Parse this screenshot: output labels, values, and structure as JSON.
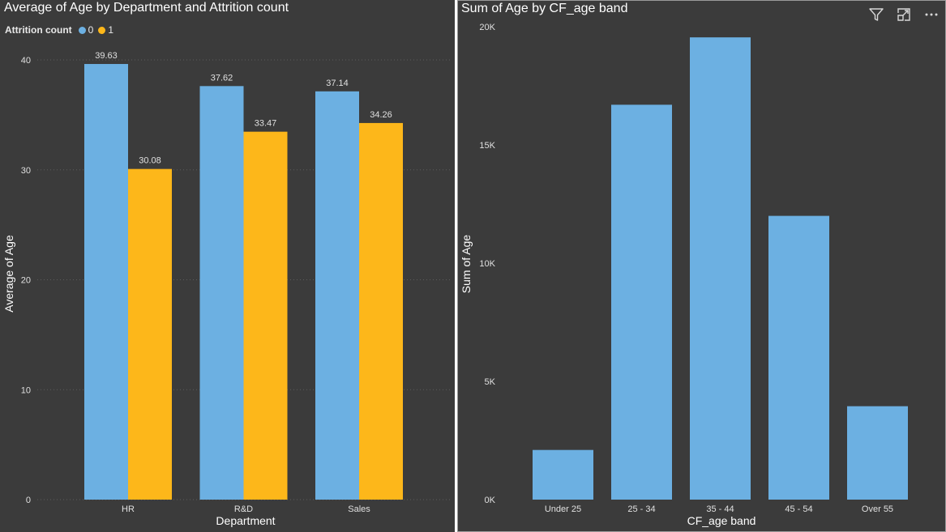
{
  "chart_data": [
    {
      "type": "bar",
      "title": "Average of Age by Department and Attrition count",
      "xlabel": "Department",
      "ylabel": "Average of Age",
      "legend_title": "Attrition count",
      "legend_placement": "top-left",
      "categories": [
        "HR",
        "R&D",
        "Sales"
      ],
      "series": [
        {
          "name": "0",
          "color": "#6cb0e2",
          "values": [
            39.63,
            37.62,
            37.14
          ],
          "labels": [
            "39.63",
            "37.62",
            "37.14"
          ]
        },
        {
          "name": "1",
          "color": "#fdb71a",
          "values": [
            30.08,
            33.47,
            34.26
          ],
          "labels": [
            "30.08",
            "33.47",
            "34.26"
          ]
        }
      ],
      "ylim": [
        0,
        40
      ],
      "yticks": [
        0,
        10,
        20,
        30,
        40
      ],
      "ytick_labels": [
        "0",
        "10",
        "20",
        "30",
        "40"
      ],
      "grid": true
    },
    {
      "type": "bar",
      "title": "Sum of Age by CF_age band",
      "xlabel": "CF_age band",
      "ylabel": "Sum of Age",
      "categories": [
        "Under 25",
        "25 - 34",
        "35 - 44",
        "45 - 54",
        "Over 55"
      ],
      "values": [
        2100,
        16700,
        19550,
        12000,
        3950
      ],
      "color": "#6cb0e2",
      "ylim": [
        0,
        20000
      ],
      "yticks": [
        0,
        5000,
        10000,
        15000,
        20000
      ],
      "ytick_labels": [
        "0K",
        "5K",
        "10K",
        "15K",
        "20K"
      ],
      "grid": false
    }
  ],
  "toolbar": {
    "icons": [
      "filter-icon",
      "focus-mode-icon",
      "more-options-icon"
    ]
  },
  "colors": {
    "panel_bg": "#3b3b3b",
    "text": "#ffffff",
    "tick_text": "#e0e0e0",
    "grid": "#5c5c5c"
  }
}
